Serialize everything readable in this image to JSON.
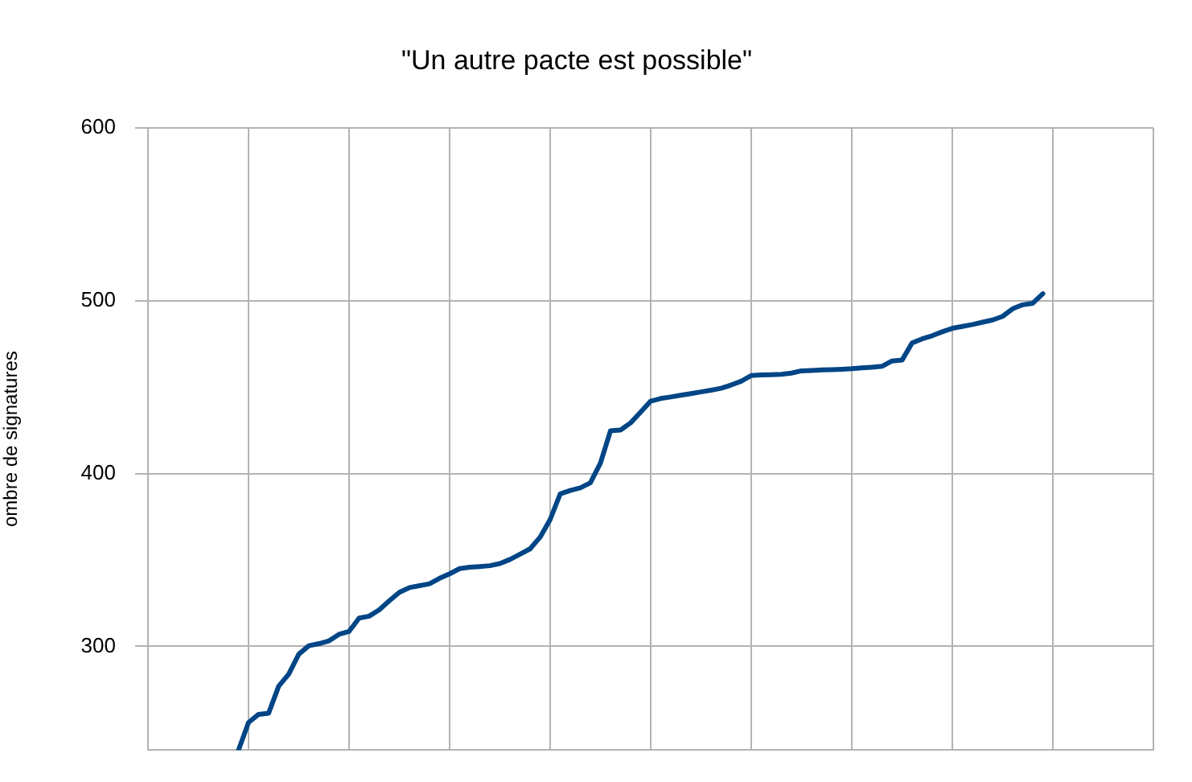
{
  "chart_data": {
    "type": "line",
    "title": "\"Un autre pacte est possible\"",
    "ylabel": "ombre de signatures",
    "categories": [
      null,
      null,
      null,
      null,
      null,
      null,
      null,
      null,
      null,
      null,
      null,
      null,
      null,
      null,
      null,
      null,
      null,
      null,
      null,
      null,
      null,
      null,
      null,
      null,
      null,
      null,
      null,
      null,
      null,
      null,
      null,
      null,
      null,
      null,
      null,
      null,
      null,
      null,
      null,
      null,
      null,
      null,
      null,
      null,
      null,
      null,
      null,
      null,
      null,
      null,
      null,
      null,
      null,
      null,
      null,
      null,
      null,
      null,
      null,
      null,
      null,
      null,
      null,
      null,
      null,
      null,
      null,
      null,
      null,
      null,
      null,
      null,
      null,
      null,
      null,
      null,
      null,
      null,
      null,
      null,
      null,
      null,
      null,
      null,
      null,
      null,
      null,
      null,
      null,
      null,
      null,
      null,
      null,
      null,
      null,
      null,
      null,
      null,
      null,
      null,
      null
    ],
    "series": [
      {
        "color": "#004586",
        "values": [
          null,
          null,
          null,
          null,
          null,
          null,
          null,
          null,
          null,
          240,
          256,
          260.7,
          261.4,
          277,
          284,
          295.5,
          300.4,
          301.6,
          303.2,
          307,
          308.7,
          316.4,
          317.5,
          321.2,
          326.4,
          331.3,
          334,
          335.1,
          336.2,
          339.4,
          342,
          345,
          345.8,
          346.2,
          346.7,
          347.9,
          350.3,
          353.3,
          356.4,
          363.2,
          373.4,
          388.2,
          390.2,
          391.7,
          394.6,
          406,
          424.7,
          425.2,
          429.3,
          435.5,
          441.9,
          443.4,
          444.3,
          445.3,
          446.2,
          447.2,
          448.2,
          449.3,
          451.2,
          453.4,
          456.7,
          457,
          457.2,
          457.4,
          458.1,
          459.4,
          459.6,
          459.9,
          460.1,
          460.3,
          460.6,
          461.1,
          461.5,
          462,
          465.1,
          465.6,
          475.5,
          477.9,
          479.7,
          482,
          484,
          485.1,
          486.2,
          487.5,
          488.8,
          490.9,
          495.3,
          497.6,
          498.5,
          504,
          null,
          null,
          null,
          null,
          null,
          null,
          null,
          null,
          null,
          null,
          null
        ]
      }
    ],
    "ylim": [
      240,
      600
    ],
    "yticks": [
      300,
      400,
      500,
      600
    ],
    "tick_labels": "y",
    "grid": true,
    "legend": false,
    "marker": "none",
    "line_style": "solid"
  }
}
